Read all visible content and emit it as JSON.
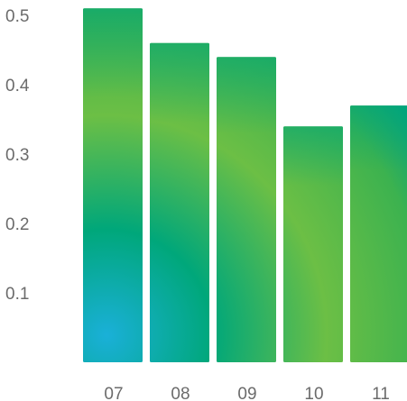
{
  "chart_data": {
    "type": "bar",
    "categories": [
      "07",
      "08",
      "09",
      "10",
      "11"
    ],
    "values": [
      0.51,
      0.46,
      0.44,
      0.34,
      0.37
    ],
    "ylim": [
      0,
      0.5
    ],
    "yticks": [
      0.1,
      0.2,
      0.3,
      0.4,
      0.5
    ],
    "ytick_labels": [
      "0.1",
      "0.2",
      "0.3",
      "0.4",
      "0.5"
    ],
    "title": "",
    "xlabel": "",
    "ylabel": "",
    "grid": false,
    "legend": "none"
  },
  "colors": {
    "bar_light_blue": "#1ab0d8",
    "bar_teal": "#00a77a",
    "bar_green": "#6cbf45",
    "tick_text": "#6b6b6b"
  }
}
